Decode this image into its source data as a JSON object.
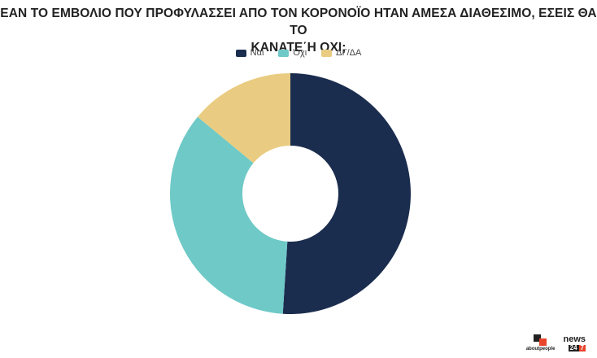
{
  "title_line1": "ΕΑΝ ΤΟ ΕΜΒΟΛΙΟ ΠΟΥ ΠΡΟΦΥΛΑΣΣΕΙ ΑΠΟ ΤΟΝ ΚΟΡΟΝΟΪΟ ΗΤΑΝ ΑΜΕΣΑ ΔΙΑΘΕΣΙΜΟ, ΕΣΕΙΣ ΘΑ ΤΟ",
  "title_line2": "ΚΑΝΑΤΕ΄Η ΟΧΙ;",
  "colors": {
    "yes": "#1b2d4f",
    "no": "#6ec9c7",
    "dk": "#e9cc81"
  },
  "chart_data": {
    "type": "pie",
    "donut": true,
    "categories": [
      "Ναι",
      "Όχι",
      "ΔΓ/ΔΑ"
    ],
    "values": [
      51,
      35,
      14
    ],
    "legend_position": "top-center"
  },
  "footer": {
    "brand1": "aboutpeople",
    "brand2": "news",
    "brand2_num_a": "24",
    "brand2_num_b": "7"
  }
}
